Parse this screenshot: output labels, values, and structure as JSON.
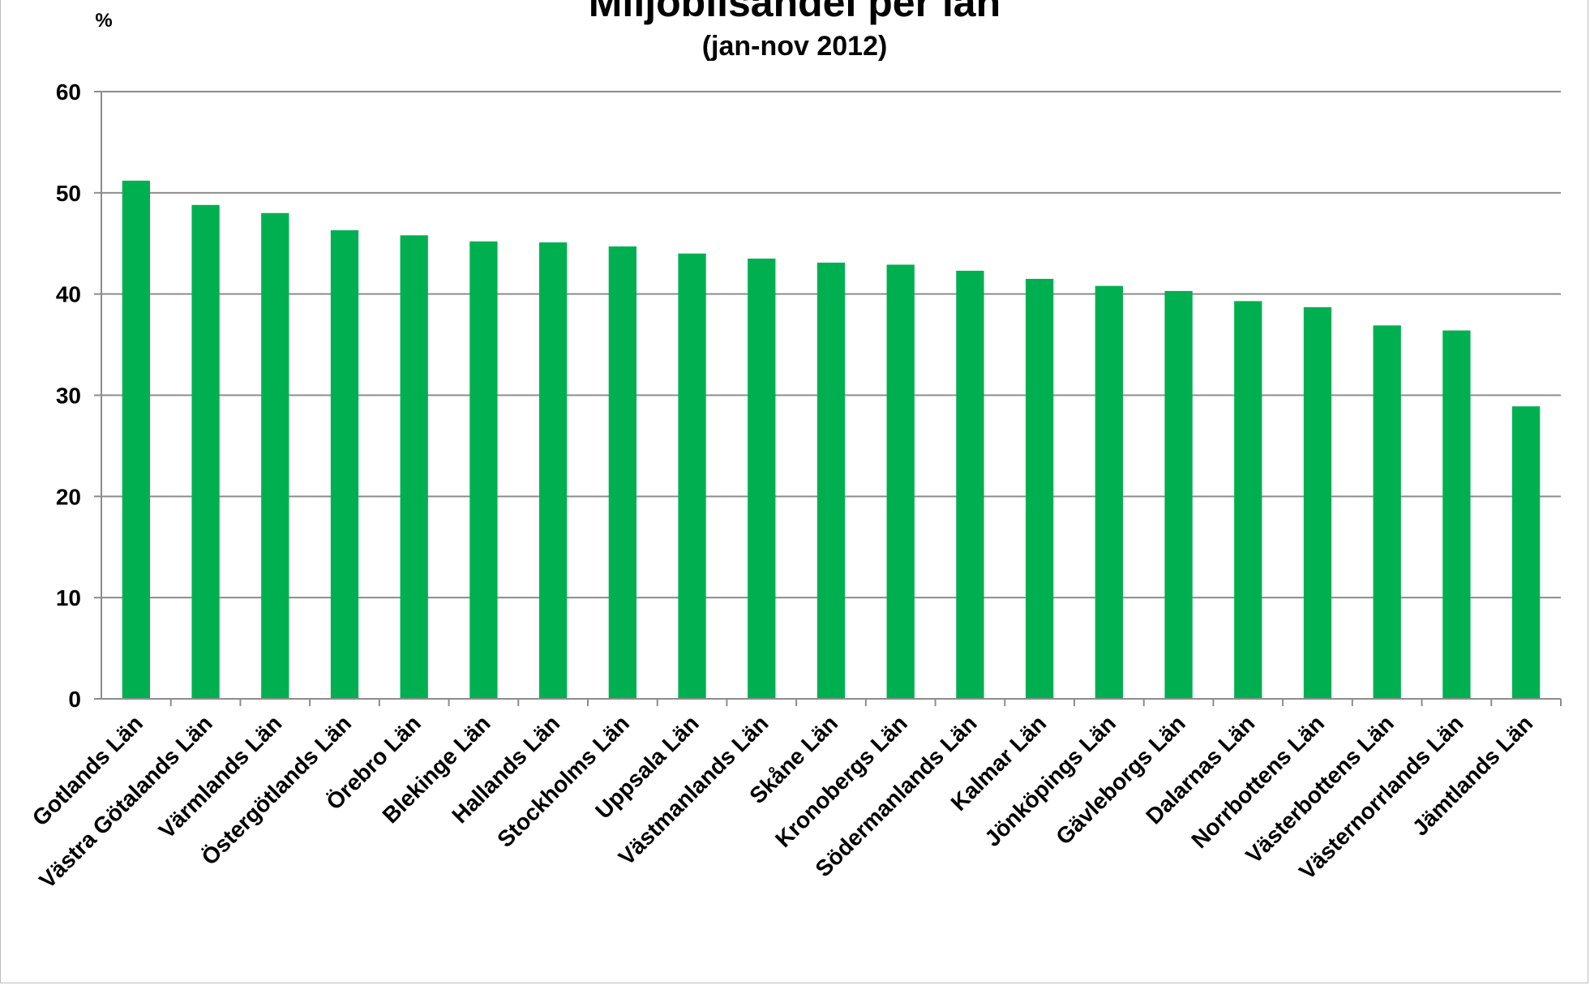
{
  "chart_data": {
    "type": "bar",
    "title": "Miljöbilsandel per län",
    "subtitle": "(jan-nov 2012)",
    "ylabel": "%",
    "xlabel": "",
    "ylim": [
      0,
      60
    ],
    "yticks": [
      0,
      10,
      20,
      30,
      40,
      50,
      60
    ],
    "grid": true,
    "legend": "none",
    "bar_color": "#00b050",
    "categories": [
      "Gotlands Län",
      "Västra Götalands Län",
      "Värmlands Län",
      "Östergötlands Län",
      "Örebro Län",
      "Blekinge Län",
      "Hallands Län",
      "Stockholms Län",
      "Uppsala Län",
      "Västmanlands Län",
      "Skåne Län",
      "Kronobergs Län",
      "Södermanlands Län",
      "Kalmar Län",
      "Jönköpings Län",
      "Gävleborgs Län",
      "Dalarnas Län",
      "Norrbottens Län",
      "Västerbottens Län",
      "Västernorrlands Län",
      "Jämtlands Län"
    ],
    "values": [
      51.2,
      48.8,
      48.0,
      46.3,
      45.8,
      45.2,
      45.1,
      44.7,
      44.0,
      43.5,
      43.1,
      42.9,
      42.3,
      41.5,
      40.8,
      40.3,
      39.3,
      38.7,
      36.9,
      36.4,
      28.9
    ]
  }
}
